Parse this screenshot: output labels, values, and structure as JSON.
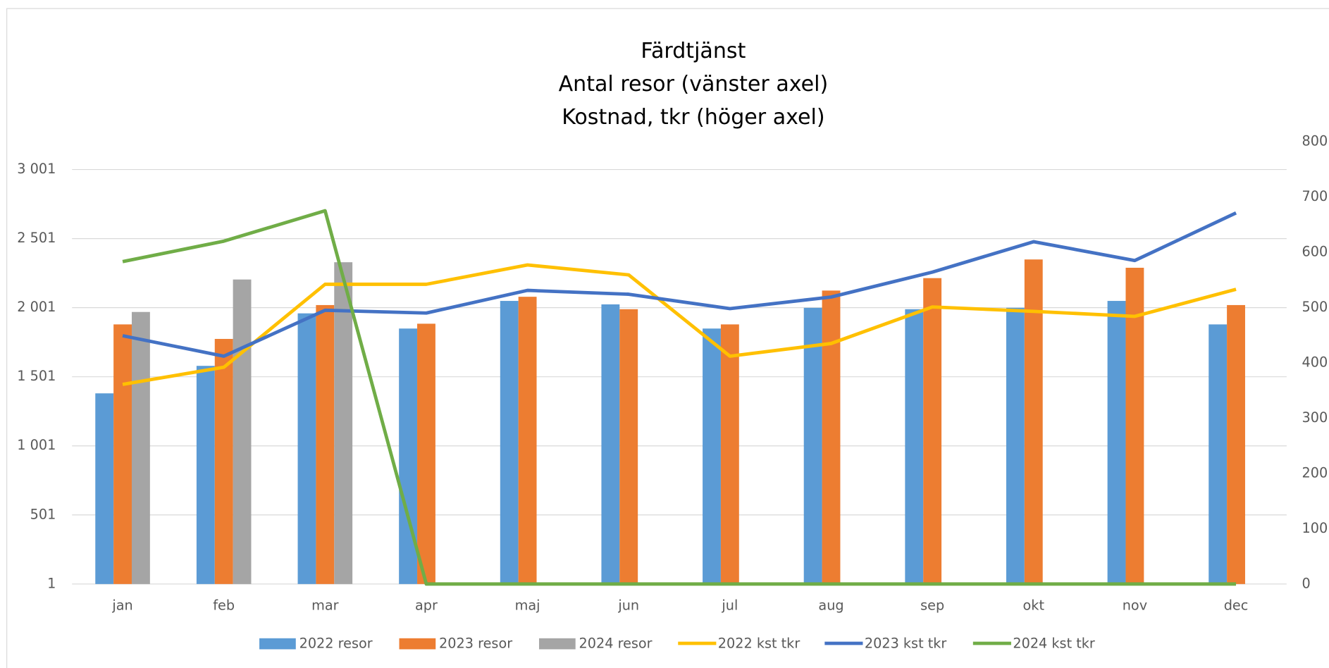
{
  "chart_data": {
    "type": "bar-line",
    "title": [
      "Färdtjänst",
      "Antal resor (vänster axel)",
      "Kostnad, tkr (höger axel)"
    ],
    "categories": [
      "jan",
      "feb",
      "mar",
      "apr",
      "maj",
      "jun",
      "jul",
      "aug",
      "sep",
      "okt",
      "nov",
      "dec"
    ],
    "series": [
      {
        "name": "2022 resor",
        "kind": "bar",
        "color": "#5b9bd5",
        "values": [
          1381,
          1580,
          1960,
          1850,
          2050,
          2025,
          1850,
          2000,
          1990,
          2000,
          2050,
          1880
        ]
      },
      {
        "name": "2023 resor",
        "kind": "bar",
        "color": "#ed7d31",
        "values": [
          1880,
          1775,
          2020,
          1885,
          2080,
          1990,
          1880,
          2125,
          2215,
          2350,
          2290,
          2020
        ]
      },
      {
        "name": "2024 resor",
        "kind": "bar",
        "color": "#a5a5a5",
        "values": [
          1970,
          2205,
          2330,
          null,
          null,
          null,
          null,
          null,
          null,
          null,
          null,
          null
        ]
      },
      {
        "name": "2022 kst tkr",
        "kind": "line",
        "axis": "y2",
        "color": "#ffc000",
        "values": [
          361,
          392,
          542,
          542,
          577,
          559,
          412,
          435,
          501,
          493,
          484,
          533
        ]
      },
      {
        "name": "2023 kst tkr",
        "kind": "line",
        "axis": "y2",
        "color": "#4472c4",
        "values": [
          449,
          412,
          495,
          490,
          531,
          524,
          498,
          519,
          564,
          619,
          585,
          671
        ]
      },
      {
        "name": "2024 kst tkr",
        "kind": "line",
        "axis": "y2",
        "color": "#70ad47",
        "values": [
          583,
          620,
          675,
          0,
          0,
          0,
          0,
          0,
          0,
          0,
          0,
          0
        ]
      }
    ],
    "ylim": [
      1,
      3203
    ],
    "yticks": [
      1,
      501,
      {
        "value": 1001,
        "label": "1 001"
      },
      {
        "value": 1501,
        "label": "1 501"
      },
      {
        "value": 2001,
        "label": "2 001"
      },
      {
        "value": 2501,
        "label": "2 501"
      },
      {
        "value": 3001,
        "label": "3 001"
      }
    ],
    "y2lim": [
      0,
      800
    ],
    "y2ticks": [
      0,
      100,
      200,
      300,
      400,
      500,
      600,
      700,
      800
    ],
    "grid": true,
    "legend": "bottom"
  }
}
